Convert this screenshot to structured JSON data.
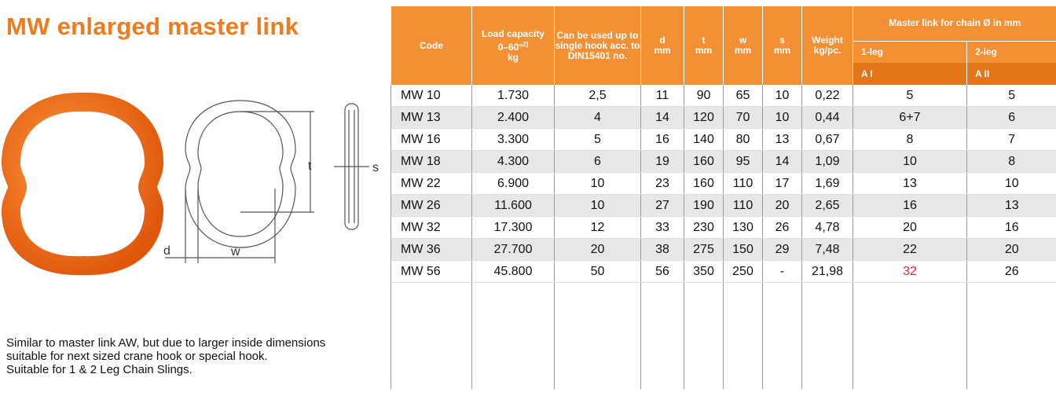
{
  "title": "MW enlarged master link",
  "description": [
    "Similar to master link AW, but due to larger inside dimensions suitable for next sized crane hook or special hook.",
    "Suitable for 1 & 2 Leg Chain Slings."
  ],
  "drawing_labels": {
    "d": "d",
    "w": "w",
    "t": "t",
    "s": "s"
  },
  "table": {
    "headers": [
      [
        "Code"
      ],
      [
        "Load capacity",
        "0–60°",
        "kg"
      ],
      [
        "Can be used up to",
        "single hook acc. to",
        "DIN15401 no."
      ],
      [
        "d",
        "mm"
      ],
      [
        "t",
        "mm"
      ],
      [
        "w",
        "mm"
      ],
      [
        "s",
        "mm"
      ],
      [
        "Weight",
        "kg/pc."
      ]
    ],
    "load_capacity_note": "2)",
    "group_header": "Master link for chain Ø in mm",
    "sub_headers": [
      "1-leg",
      "2-leg"
    ],
    "grade_headers": [
      "A I",
      "A II"
    ],
    "rows": [
      [
        "MW 10",
        "1.730",
        "2,5",
        "11",
        "90",
        "65",
        "10",
        "0,22",
        "5",
        "5"
      ],
      [
        "MW 13",
        "2.400",
        "4",
        "14",
        "120",
        "70",
        "10",
        "0,44",
        "6+7",
        "6"
      ],
      [
        "MW 16",
        "3.300",
        "5",
        "16",
        "140",
        "80",
        "13",
        "0,67",
        "8",
        "7"
      ],
      [
        "MW 18",
        "4.300",
        "6",
        "19",
        "160",
        "95",
        "14",
        "1,09",
        "10",
        "8"
      ],
      [
        "MW 22",
        "6.900",
        "10",
        "23",
        "160",
        "110",
        "17",
        "1,69",
        "13",
        "10"
      ],
      [
        "MW 26",
        "11.600",
        "10",
        "27",
        "190",
        "110",
        "20",
        "2,65",
        "16",
        "13"
      ],
      [
        "MW 32",
        "17.300",
        "12",
        "33",
        "230",
        "130",
        "26",
        "4,78",
        "20",
        "16"
      ],
      [
        "MW 36",
        "27.700",
        "20",
        "38",
        "275",
        "150",
        "29",
        "7,48",
        "22",
        "20"
      ],
      [
        "MW 56",
        "45.800",
        "50",
        "56",
        "350",
        "250",
        "-",
        "21,98",
        "32",
        "26"
      ]
    ]
  }
}
